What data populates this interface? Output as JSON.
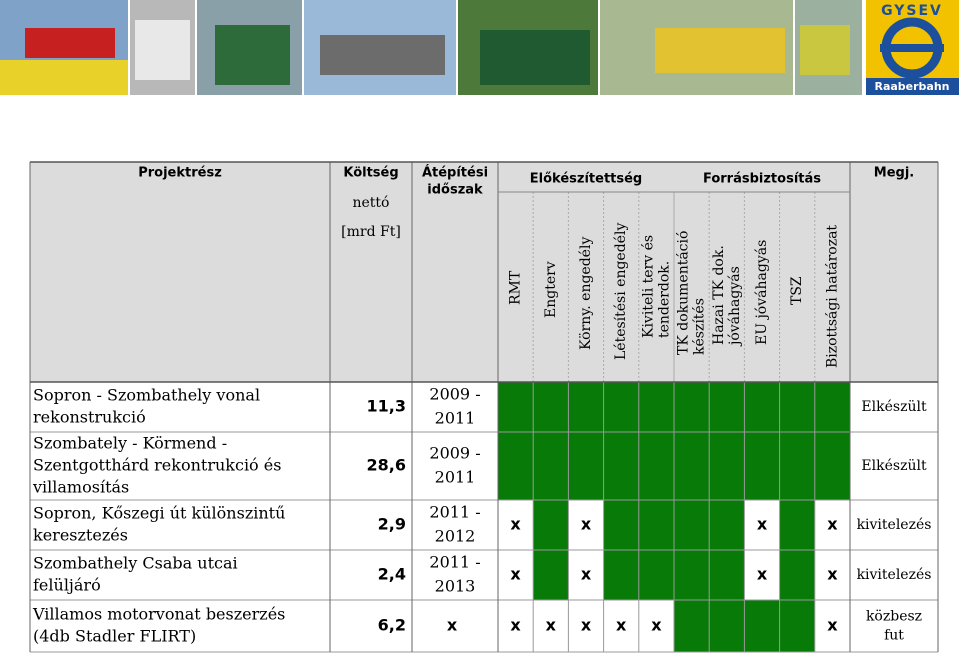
{
  "banner": {
    "logo": {
      "name": "GYSEV",
      "subtitle": "Raaberbahn"
    }
  },
  "table": {
    "headers": {
      "project": "Projektrész",
      "cost": [
        "Költség",
        "nettó",
        "[mrd Ft]"
      ],
      "period": [
        "Átépítési",
        "időszak"
      ],
      "groups": [
        {
          "label": "Előkészítettség",
          "columns": [
            {
              "lines": [
                "RMT"
              ]
            },
            {
              "lines": [
                "Engterv"
              ]
            },
            {
              "lines": [
                "Körny. engedély"
              ]
            },
            {
              "lines": [
                "Létesítési engedély"
              ]
            },
            {
              "lines": [
                "Kiviteli terv és",
                "tenderdok."
              ]
            }
          ]
        },
        {
          "label": "Forrásbiztosítás",
          "columns": [
            {
              "lines": [
                "TK dokumentáció",
                "készítés"
              ]
            },
            {
              "lines": [
                "Hazai TK dok.",
                "jóváhagyás"
              ]
            },
            {
              "lines": [
                "EU jóváhagyás"
              ]
            },
            {
              "lines": [
                "TSZ"
              ]
            },
            {
              "lines": [
                "Bizottsági határozat"
              ]
            }
          ]
        }
      ],
      "note": "Megj."
    },
    "rows": [
      {
        "project": [
          "Sopron - Szombathely vonal",
          "rekonstrukció"
        ],
        "cost": "11,3",
        "period": [
          "2009 -",
          "2011"
        ],
        "status": [
          {
            "color": "#087a08"
          },
          {
            "color": "#087a08"
          },
          {
            "color": "#087a08"
          },
          {
            "color": "#087a08"
          },
          {
            "color": "#087a08"
          },
          {
            "color": "#087a08"
          },
          {
            "color": "#087a08"
          },
          {
            "color": "#087a08"
          },
          {
            "color": "#087a08"
          },
          {
            "color": "#087a08"
          }
        ],
        "note": [
          "Elkészült"
        ]
      },
      {
        "project": [
          "Szombately - Körmend -",
          "Szentgotthárd rekontrukció és",
          "villamosítás"
        ],
        "cost": "28,6",
        "period": [
          "2009 -",
          "2011"
        ],
        "status": [
          {
            "color": "#087a08"
          },
          {
            "color": "#087a08"
          },
          {
            "color": "#087a08"
          },
          {
            "color": "#087a08"
          },
          {
            "color": "#087a08"
          },
          {
            "color": "#087a08"
          },
          {
            "color": "#087a08"
          },
          {
            "color": "#087a08"
          },
          {
            "color": "#087a08"
          },
          {
            "color": "#087a08"
          }
        ],
        "note": [
          "Elkészült"
        ]
      },
      {
        "project": [
          "Sopron, Kőszegi út különszintű",
          "keresztezés"
        ],
        "cost": "2,9",
        "period": [
          "2011 -",
          "2012"
        ],
        "status": [
          {
            "mark": "x"
          },
          {
            "color": "#087a08"
          },
          {
            "mark": "x"
          },
          {
            "color": "#087a08"
          },
          {
            "color": "#087a08"
          },
          {
            "color": "#087a08"
          },
          {
            "color": "#087a08"
          },
          {
            "mark": "x"
          },
          {
            "color": "#087a08"
          },
          {
            "mark": "x"
          }
        ],
        "note": [
          "kivitelezés"
        ]
      },
      {
        "project": [
          "Szombathely Csaba utcai",
          "felüljáró"
        ],
        "cost": "2,4",
        "period": [
          "2011 -",
          "2013"
        ],
        "status": [
          {
            "mark": "x"
          },
          {
            "color": "#087a08"
          },
          {
            "mark": "x"
          },
          {
            "color": "#087a08"
          },
          {
            "color": "#087a08"
          },
          {
            "color": "#087a08"
          },
          {
            "color": "#087a08"
          },
          {
            "mark": "x"
          },
          {
            "color": "#087a08"
          },
          {
            "mark": "x"
          }
        ],
        "note": [
          "kivitelezés"
        ]
      },
      {
        "project": [
          "Villamos motorvonat beszerzés",
          "(4db Stadler FLIRT)"
        ],
        "cost": "6,2",
        "period_mark": "x",
        "status": [
          {
            "mark": "x"
          },
          {
            "mark": "x"
          },
          {
            "mark": "x"
          },
          {
            "mark": "x"
          },
          {
            "mark": "x"
          },
          {
            "color": "#087a08"
          },
          {
            "color": "#087a08"
          },
          {
            "color": "#087a08"
          },
          {
            "color": "#087a08"
          },
          {
            "mark": "x"
          }
        ],
        "note": [
          "közbesz",
          "fut"
        ]
      }
    ]
  }
}
